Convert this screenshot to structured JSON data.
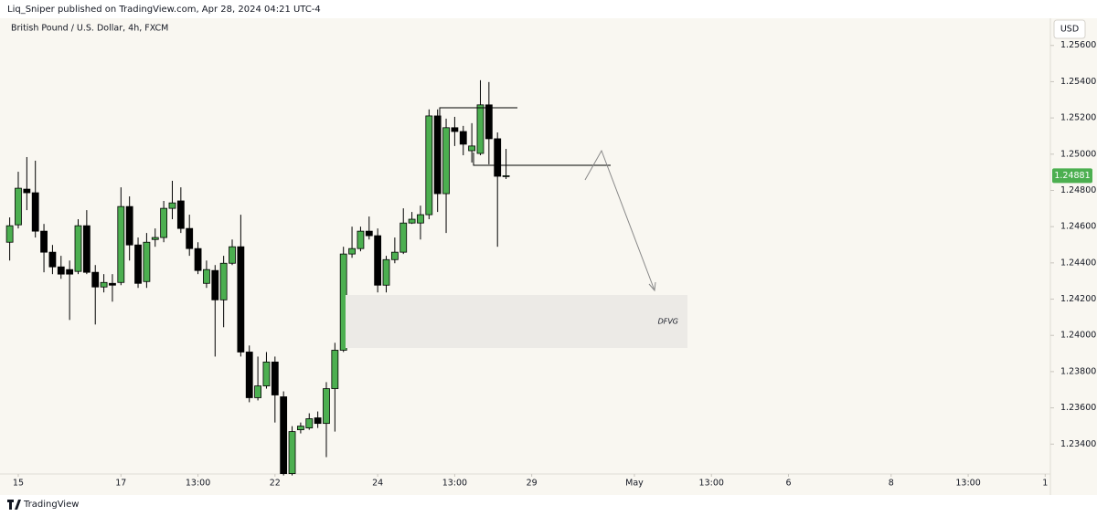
{
  "header": "Liq_Sniper published on TradingView.com, Apr 28, 2024 04:21 UTC-4",
  "footer": "TradingView",
  "chart_data": {
    "type": "candlestick",
    "title": "British Pound / U.S. Dollar, 4h, FXCM",
    "currency": "USD",
    "annotation": "DFVG",
    "up_color": "#4caf50",
    "down_color": "#000000",
    "x": [
      0,
      1,
      2,
      3,
      4,
      5,
      6,
      7,
      8,
      9,
      10,
      11,
      12,
      13,
      14,
      15,
      16,
      17,
      18,
      19,
      20,
      21,
      22,
      23,
      24,
      25,
      26,
      27,
      28,
      29,
      30,
      31,
      32,
      33,
      34,
      35,
      36,
      37,
      38,
      39,
      40,
      41,
      42,
      43,
      44,
      45,
      46,
      47,
      48,
      49,
      50,
      51,
      52,
      53,
      54,
      55,
      56,
      57,
      58
    ],
    "open": [
      1.24514,
      1.2461,
      1.24807,
      1.24787,
      1.24575,
      1.24459,
      1.24378,
      1.24363,
      1.24353,
      1.24605,
      1.24348,
      1.24267,
      1.24287,
      1.24292,
      1.24711,
      1.24499,
      1.24297,
      1.24529,
      1.2454,
      1.24701,
      1.24742,
      1.2459,
      1.24479,
      1.24287,
      1.24358,
      1.24196,
      1.24398,
      1.24489,
      1.23908,
      1.23656,
      1.23721,
      1.23853,
      1.23661,
      1.23237,
      1.23479,
      1.23489,
      1.23545,
      1.23514,
      1.23706,
      1.23918,
      1.24449,
      1.24479,
      1.24575,
      1.2455,
      1.24277,
      1.24418,
      1.24459,
      1.2462,
      1.2462,
      1.24666,
      1.25211,
      1.24782,
      1.25146,
      1.25125,
      1.25019,
      1.25004,
      1.25272,
      1.25085,
      1.24878
    ],
    "high": [
      1.24651,
      1.24903,
      1.24984,
      1.24964,
      1.24615,
      1.24499,
      1.24439,
      1.24413,
      1.24641,
      1.24691,
      1.24388,
      1.24338,
      1.24338,
      1.24817,
      1.24767,
      1.2454,
      1.24565,
      1.2459,
      1.24742,
      1.24853,
      1.24817,
      1.24666,
      1.24514,
      1.24413,
      1.24388,
      1.24439,
      1.24529,
      1.24666,
      1.23944,
      1.23883,
      1.23908,
      1.23883,
      1.23691,
      1.23499,
      1.23519,
      1.2357,
      1.2358,
      1.23742,
      1.23959,
      1.24489,
      1.246,
      1.246,
      1.24656,
      1.2459,
      1.24439,
      1.2454,
      1.24701,
      1.24681,
      1.24716,
      1.25247,
      1.25247,
      1.25196,
      1.25206,
      1.25156,
      1.25171,
      1.25408,
      1.25398,
      1.2512,
      1.25029
    ],
    "low": [
      1.24413,
      1.2459,
      1.24691,
      1.2454,
      1.24348,
      1.24338,
      1.24312,
      1.24085,
      1.24338,
      1.24338,
      1.2406,
      1.24237,
      1.24186,
      1.24277,
      1.24413,
      1.24262,
      1.24262,
      1.24489,
      1.24514,
      1.24641,
      1.24565,
      1.24439,
      1.24338,
      1.24262,
      1.23883,
      1.24045,
      1.24388,
      1.23883,
      1.23631,
      1.23641,
      1.23706,
      1.23519,
      1.23227,
      1.23227,
      1.23459,
      1.23479,
      1.23489,
      1.23328,
      1.23469,
      1.23908,
      1.24428,
      1.24464,
      1.24529,
      1.24237,
      1.24237,
      1.24398,
      1.24449,
      1.24615,
      1.24529,
      1.24641,
      1.24681,
      1.24565,
      1.25045,
      1.24994,
      1.24954,
      1.24994,
      1.24944,
      1.24489,
      1.24863
    ],
    "close": [
      1.24605,
      1.24812,
      1.24787,
      1.24575,
      1.24459,
      1.24378,
      1.24338,
      1.24338,
      1.24605,
      1.24348,
      1.24267,
      1.24292,
      1.24277,
      1.24711,
      1.24499,
      1.24287,
      1.24514,
      1.2454,
      1.24701,
      1.24731,
      1.2459,
      1.24479,
      1.24358,
      1.24363,
      1.24196,
      1.24398,
      1.24489,
      1.23908,
      1.23656,
      1.23721,
      1.23853,
      1.23671,
      1.23237,
      1.23469,
      1.23499,
      1.2354,
      1.23514,
      1.23706,
      1.23918,
      1.24449,
      1.24479,
      1.24575,
      1.2455,
      1.24277,
      1.24418,
      1.24459,
      1.2462,
      1.24641,
      1.24666,
      1.25211,
      1.24782,
      1.25146,
      1.25125,
      1.25055,
      1.25045,
      1.25272,
      1.25085,
      1.24878,
      1.24881
    ],
    "xlim": [
      -0.6,
      121.5
    ],
    "ylim": [
      1.2323,
      1.2576
    ],
    "xticks": [
      {
        "value": 1,
        "label": "15"
      },
      {
        "value": 13,
        "label": "17"
      },
      {
        "value": 22,
        "label": "13:00"
      },
      {
        "value": 31,
        "label": "22"
      },
      {
        "value": 43,
        "label": "24"
      },
      {
        "value": 52,
        "label": "13:00"
      },
      {
        "value": 61,
        "label": "29"
      },
      {
        "value": 73,
        "label": "May"
      },
      {
        "value": 82,
        "label": "13:00"
      },
      {
        "value": 91,
        "label": "6"
      },
      {
        "value": 103,
        "label": "8"
      },
      {
        "value": 112,
        "label": "13:00"
      },
      {
        "value": 121,
        "label": "1"
      }
    ],
    "yticks": [
      {
        "value": 1.256,
        "label": "1.25600"
      },
      {
        "value": 1.254,
        "label": "1.25400"
      },
      {
        "value": 1.252,
        "label": "1.25200"
      },
      {
        "value": 1.25,
        "label": "1.25000"
      },
      {
        "value": 1.248,
        "label": "1.24800"
      },
      {
        "value": 1.246,
        "label": "1.24600"
      },
      {
        "value": 1.244,
        "label": "1.24400"
      },
      {
        "value": 1.242,
        "label": "1.24200"
      },
      {
        "value": 1.24,
        "label": "1.24000"
      },
      {
        "value": 1.238,
        "label": "1.23800"
      },
      {
        "value": 1.236,
        "label": "1.23600"
      },
      {
        "value": 1.234,
        "label": "1.23400"
      }
    ]
  }
}
